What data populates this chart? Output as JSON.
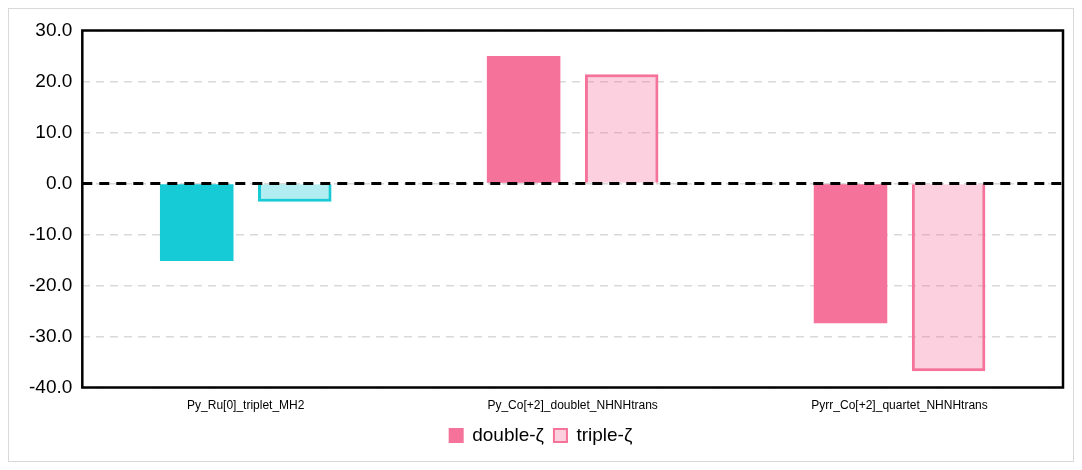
{
  "chart_data": {
    "type": "bar",
    "categories": [
      "Py_Ru[0]_triplet_MH2",
      "Py_Co[+2]_doublet_NHNHtrans",
      "Pyrr_Co[+2]_quartet_NHNHtrans"
    ],
    "series": [
      {
        "name": "double-ζ",
        "colors": [
          "#17cbd6",
          "#f5739b",
          "#f5739b"
        ],
        "values": [
          -15.2,
          25.0,
          -27.4
        ]
      },
      {
        "name": "triple-ζ",
        "colors": [
          "#17cbd6",
          "#f5739b",
          "#f5739b"
        ],
        "values": [
          -3.6,
          21.4,
          -36.8
        ]
      }
    ],
    "ylim": [
      -40,
      30
    ],
    "yticks": [
      {
        "value": -40,
        "label": "-40.0"
      },
      {
        "value": -30,
        "label": "-30.0"
      },
      {
        "value": -20,
        "label": "-20.0"
      },
      {
        "value": -10,
        "label": "-10.0"
      },
      {
        "value": 0,
        "label": "0.0"
      },
      {
        "value": 10,
        "label": "10.0"
      },
      {
        "value": 20,
        "label": "20.0"
      },
      {
        "value": 30,
        "label": "30.0"
      }
    ],
    "grid": "y",
    "legend": "bottom",
    "ref_lines": [
      {
        "axis": "y",
        "value": 0,
        "color": "#000000",
        "line_style": "dashed"
      }
    ]
  }
}
